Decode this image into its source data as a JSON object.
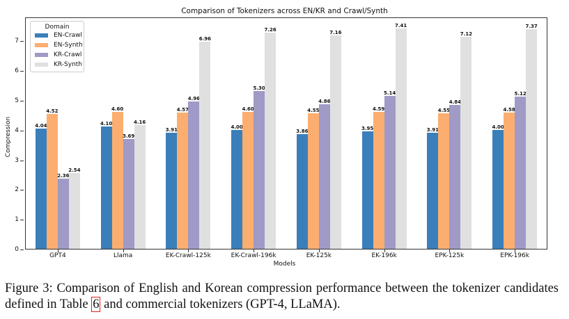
{
  "chart_data": {
    "type": "bar",
    "title": "Comparison of Tokenizers across EN/KR and Crawl/Synth",
    "xlabel": "Models",
    "ylabel": "Compression",
    "ylim": [
      0,
      7.8
    ],
    "yticks": [
      0,
      1,
      2,
      3,
      4,
      5,
      6,
      7
    ],
    "grid": false,
    "legend_title": "Domain",
    "legend_position": "upper left",
    "categories": [
      "GPT4",
      "Llama",
      "EK-Crawl-125k",
      "EK-Crawl-196k",
      "EK-125k",
      "EK-196k",
      "EPK-125k",
      "EPK-196k"
    ],
    "series": [
      {
        "name": "EN-Crawl",
        "color": "#3a7fba",
        "values": [
          4.04,
          4.1,
          3.91,
          4.0,
          3.86,
          3.95,
          3.91,
          4.0
        ],
        "labels": [
          "4.04",
          "4.10",
          "3.91",
          "4.00",
          "3.86",
          "3.95",
          "3.91",
          "4.00"
        ]
      },
      {
        "name": "EN-Synth",
        "color": "#fbae6f",
        "values": [
          4.52,
          4.6,
          4.57,
          4.6,
          4.55,
          4.59,
          4.55,
          4.58
        ],
        "labels": [
          "4.52",
          "4.60",
          "4.57",
          "4.60",
          "4.55",
          "4.59",
          "4.55",
          "4.58"
        ]
      },
      {
        "name": "KR-Crawl",
        "color": "#9f9ac6",
        "values": [
          2.36,
          3.69,
          4.96,
          5.3,
          4.86,
          5.14,
          4.84,
          5.12
        ],
        "labels": [
          "2.36",
          "3.69",
          "4.96",
          "5.30",
          "4.86",
          "5.14",
          "4.84",
          "5.12"
        ]
      },
      {
        "name": "KR-Synth",
        "color": "#e0e0e0",
        "values": [
          2.54,
          4.16,
          6.96,
          7.26,
          7.16,
          7.41,
          7.12,
          7.37
        ],
        "labels": [
          "2.54",
          "4.16",
          "6.96",
          "7.26",
          "7.16",
          "7.41",
          "7.12",
          "7.37"
        ]
      }
    ]
  },
  "caption": {
    "before_ref": "Figure 3: Comparison of English and Korean compression performance between the tokenizer candidates defined in Table ",
    "ref": "6",
    "after_ref": " and commercial tokenizers (GPT-4, LLaMA)."
  }
}
